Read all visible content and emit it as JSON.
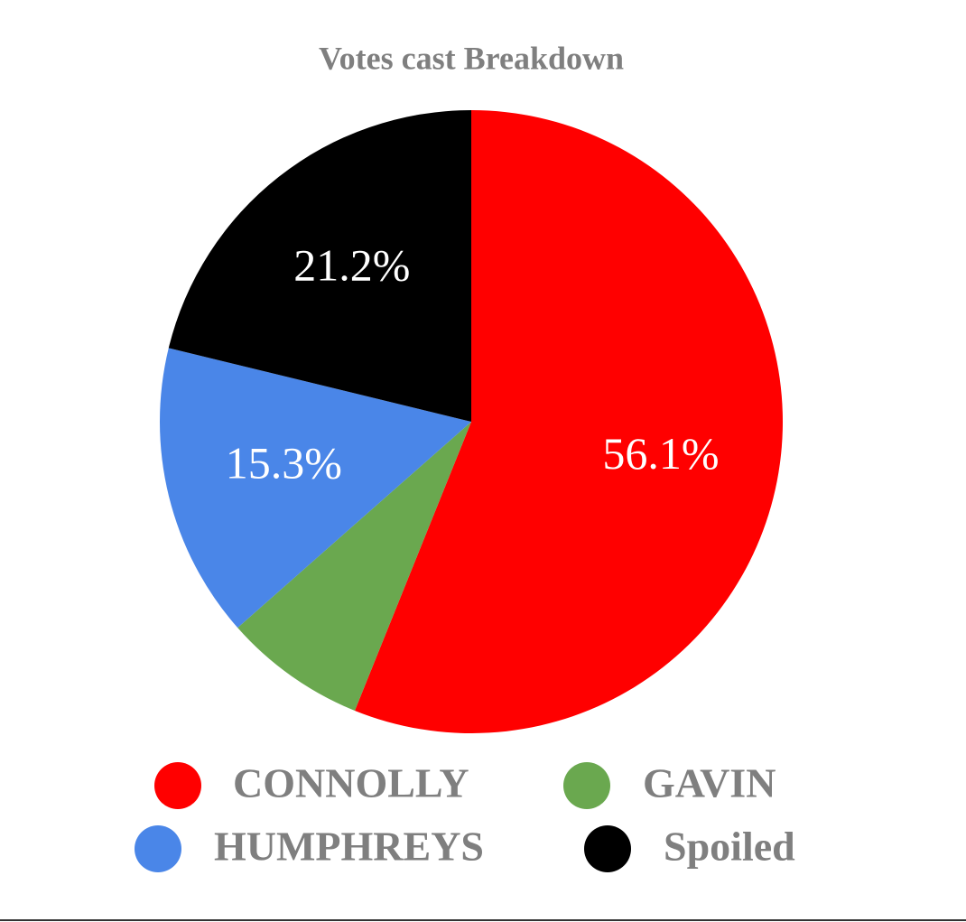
{
  "chart_data": {
    "type": "pie",
    "title": "Votes cast Breakdown",
    "categories": [
      "CONNOLLY",
      "GAVIN",
      "HUMPHREYS",
      "Spoiled"
    ],
    "values": [
      56.1,
      7.4,
      15.3,
      21.2
    ],
    "value_labels": [
      "56.1%",
      null,
      "15.3%",
      "21.2%"
    ],
    "colors": [
      "#ff0000",
      "#6aa84f",
      "#4a86e8",
      "#000000"
    ],
    "legend": "bottom"
  }
}
